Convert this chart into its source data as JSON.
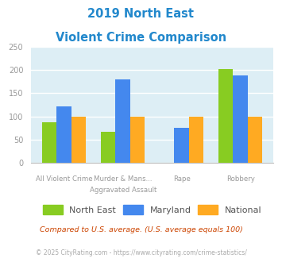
{
  "title_line1": "2019 North East",
  "title_line2": "Violent Crime Comparison",
  "title_color": "#2288cc",
  "cat_labels_top": [
    "",
    "Murder & Mans...",
    "",
    ""
  ],
  "cat_labels_bottom": [
    "All Violent Crime",
    "Aggravated Assault",
    "Rape",
    "Robbery"
  ],
  "north_east": [
    87,
    67,
    0,
    203
  ],
  "maryland": [
    121,
    180,
    75,
    188
  ],
  "national": [
    100,
    100,
    100,
    100
  ],
  "north_east_color": "#88cc22",
  "maryland_color": "#4488ee",
  "national_color": "#ffaa22",
  "ylim": [
    0,
    250
  ],
  "yticks": [
    0,
    50,
    100,
    150,
    200,
    250
  ],
  "background_color": "#ddeef5",
  "grid_color": "#ffffff",
  "footnote1": "Compared to U.S. average. (U.S. average equals 100)",
  "footnote2": "© 2025 CityRating.com - https://www.cityrating.com/crime-statistics/",
  "footnote1_color": "#cc4400",
  "footnote2_color": "#aaaaaa",
  "legend_labels": [
    "North East",
    "Maryland",
    "National"
  ],
  "bar_width": 0.25
}
